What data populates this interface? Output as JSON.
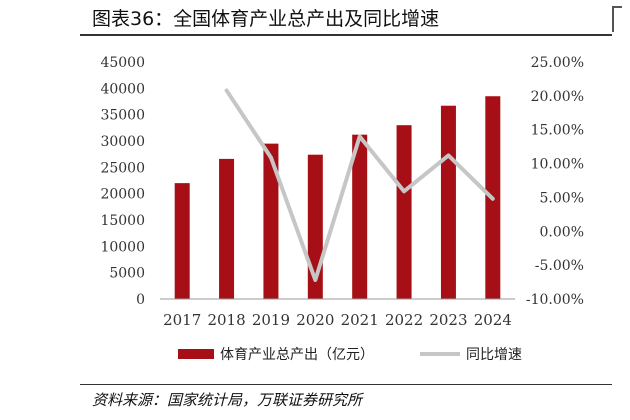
{
  "header": {
    "title": "图表36：全国体育产业总产出及同比增速"
  },
  "source": "资料来源：国家统计局，万联证券研究所",
  "chart_data": {
    "type": "bar+line",
    "categories": [
      "2017",
      "2018",
      "2019",
      "2020",
      "2021",
      "2022",
      "2023",
      "2024"
    ],
    "series": [
      {
        "name": "体育产业总产出（亿元）",
        "type": "bar",
        "axis": "left",
        "color": "#a50f15",
        "values": [
          22000,
          26600,
          29500,
          27400,
          31200,
          33000,
          36700,
          38500
        ]
      },
      {
        "name": "同比增速",
        "type": "line",
        "axis": "right",
        "color": "#c6c6c6",
        "values": [
          null,
          20.8,
          10.9,
          -7.2,
          14.0,
          5.9,
          11.2,
          4.8
        ]
      }
    ],
    "left_axis": {
      "ylim": [
        0,
        45000
      ],
      "ticks": [
        "0",
        "5000",
        "10000",
        "15000",
        "20000",
        "25000",
        "30000",
        "35000",
        "40000",
        "45000"
      ]
    },
    "right_axis": {
      "ylim": [
        -10,
        25
      ],
      "ticks": [
        "-10.00%",
        "-5.00%",
        "0.00%",
        "5.00%",
        "10.00%",
        "15.00%",
        "20.00%",
        "25.00%"
      ]
    },
    "legend": {
      "position": "bottom"
    },
    "grid": false
  }
}
